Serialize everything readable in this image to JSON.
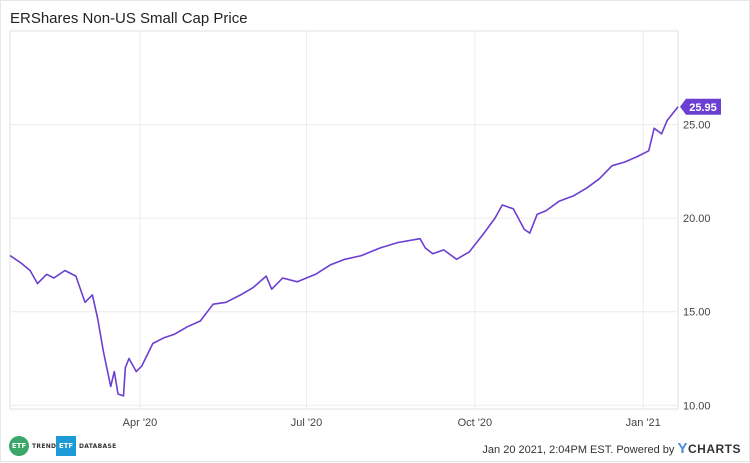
{
  "chart_data": {
    "type": "line",
    "title": "ERShares Non-US Small Cap Price",
    "x_ticks": [
      "Apr '20",
      "Jul '20",
      "Oct '20",
      "Jan '21"
    ],
    "y_ticks": [
      "10.00",
      "15.00",
      "20.00",
      "25.00"
    ],
    "ylim": [
      9.8,
      30.0
    ],
    "xlim": [
      "2020-01-21",
      "2021-01-20"
    ],
    "grid": true,
    "line_color": "#6a3fd1",
    "last_value_label": "25.95",
    "series": [
      {
        "values": [
          [
            "2020-01-21",
            18.0
          ],
          [
            "2020-01-27",
            17.6
          ],
          [
            "2020-02-01",
            17.2
          ],
          [
            "2020-02-05",
            16.5
          ],
          [
            "2020-02-10",
            17.0
          ],
          [
            "2020-02-14",
            16.8
          ],
          [
            "2020-02-20",
            17.2
          ],
          [
            "2020-02-26",
            16.9
          ],
          [
            "2020-03-02",
            15.5
          ],
          [
            "2020-03-06",
            15.9
          ],
          [
            "2020-03-09",
            14.6
          ],
          [
            "2020-03-12",
            12.9
          ],
          [
            "2020-03-16",
            11.0
          ],
          [
            "2020-03-18",
            11.8
          ],
          [
            "2020-03-20",
            10.6
          ],
          [
            "2020-03-23",
            10.5
          ],
          [
            "2020-03-24",
            12.0
          ],
          [
            "2020-03-26",
            12.5
          ],
          [
            "2020-03-30",
            11.8
          ],
          [
            "2020-04-02",
            12.1
          ],
          [
            "2020-04-08",
            13.3
          ],
          [
            "2020-04-14",
            13.6
          ],
          [
            "2020-04-20",
            13.8
          ],
          [
            "2020-04-27",
            14.2
          ],
          [
            "2020-05-04",
            14.5
          ],
          [
            "2020-05-11",
            15.4
          ],
          [
            "2020-05-18",
            15.5
          ],
          [
            "2020-05-26",
            15.9
          ],
          [
            "2020-06-02",
            16.3
          ],
          [
            "2020-06-09",
            16.9
          ],
          [
            "2020-06-12",
            16.2
          ],
          [
            "2020-06-18",
            16.8
          ],
          [
            "2020-06-26",
            16.6
          ],
          [
            "2020-07-06",
            17.0
          ],
          [
            "2020-07-14",
            17.5
          ],
          [
            "2020-07-22",
            17.8
          ],
          [
            "2020-07-31",
            18.0
          ],
          [
            "2020-08-10",
            18.4
          ],
          [
            "2020-08-20",
            18.7
          ],
          [
            "2020-09-01",
            18.9
          ],
          [
            "2020-09-04",
            18.4
          ],
          [
            "2020-09-08",
            18.1
          ],
          [
            "2020-09-14",
            18.3
          ],
          [
            "2020-09-21",
            17.8
          ],
          [
            "2020-09-28",
            18.2
          ],
          [
            "2020-10-06",
            19.2
          ],
          [
            "2020-10-12",
            20.0
          ],
          [
            "2020-10-16",
            20.7
          ],
          [
            "2020-10-22",
            20.5
          ],
          [
            "2020-10-28",
            19.4
          ],
          [
            "2020-10-31",
            19.2
          ],
          [
            "2020-11-04",
            20.2
          ],
          [
            "2020-11-09",
            20.4
          ],
          [
            "2020-11-16",
            20.9
          ],
          [
            "2020-11-24",
            21.2
          ],
          [
            "2020-12-01",
            21.6
          ],
          [
            "2020-12-08",
            22.1
          ],
          [
            "2020-12-15",
            22.8
          ],
          [
            "2020-12-22",
            23.0
          ],
          [
            "2020-12-29",
            23.3
          ],
          [
            "2021-01-04",
            23.6
          ],
          [
            "2021-01-07",
            24.8
          ],
          [
            "2021-01-11",
            24.5
          ],
          [
            "2021-01-14",
            25.2
          ],
          [
            "2021-01-20",
            25.95
          ]
        ]
      }
    ]
  },
  "footer": {
    "logo1_badge": "ETF",
    "logo1_text": "TRENDS",
    "logo2_badge": "ETF",
    "logo2_text": "DATABASE",
    "timestamp": "Jan 20 2021, 2:04PM EST. Powered by",
    "brand_y": "Y",
    "brand_rest": "CHARTS",
    "logo1_color": "#3aa66a",
    "logo2_color": "#1c9ad6"
  }
}
